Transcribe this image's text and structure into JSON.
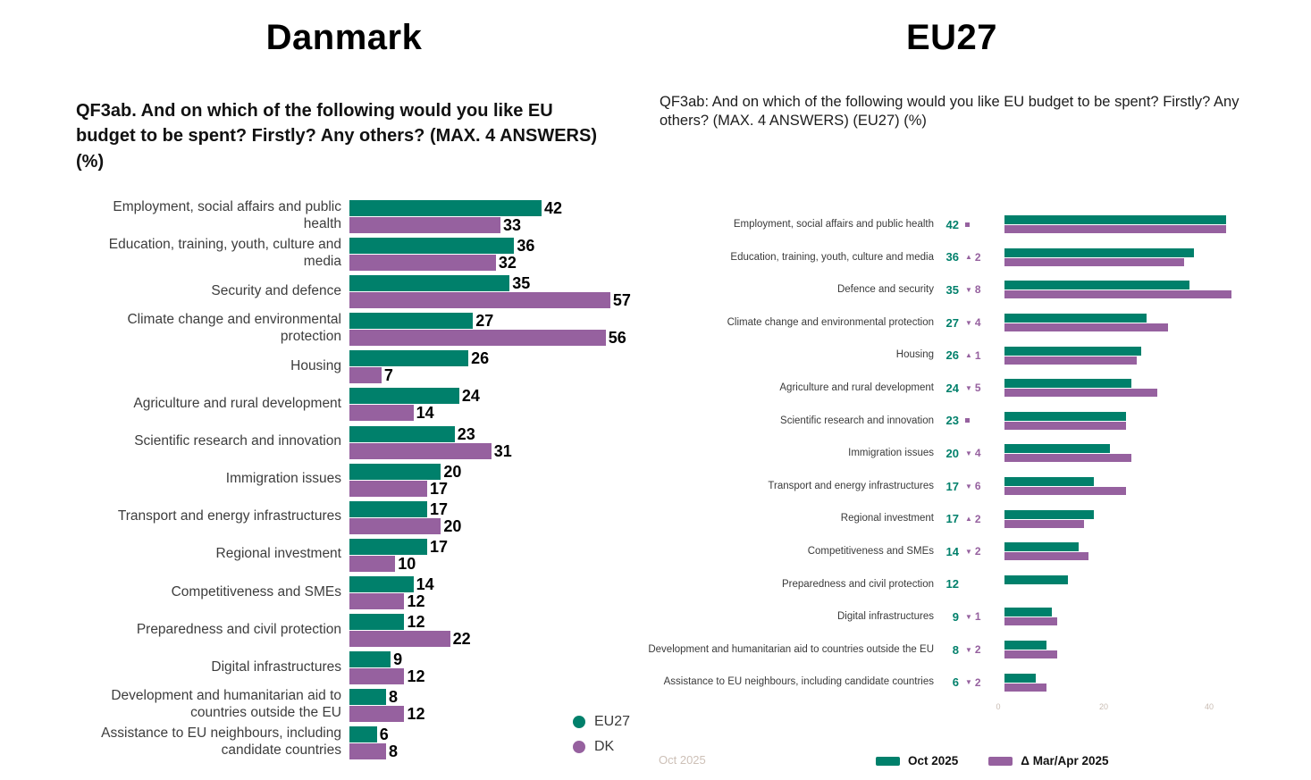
{
  "colors": {
    "teal": "#00806b",
    "purple": "#96619f",
    "axis_tick": "#c9bcb3",
    "footer": "#cdc0b7"
  },
  "left_panel": {
    "title": "Danmark",
    "question": "QF3ab. And on which of the following would you like EU budget to be spent? Firstly? Any others? (MAX. 4 ANSWERS) (%)",
    "legend": [
      {
        "label": "EU27",
        "color": "#00806b"
      },
      {
        "label": "DK",
        "color": "#96619f"
      }
    ],
    "chart_data": {
      "type": "bar",
      "orientation": "horizontal",
      "categories": [
        "Employment, social affairs and public health",
        "Education, training, youth, culture and media",
        "Security and defence",
        "Climate change and environmental protection",
        "Housing",
        "Agriculture and rural development",
        "Scientific research and innovation",
        "Immigration issues",
        "Transport and energy infrastructures",
        "Regional investment",
        "Competitiveness and SMEs",
        "Preparedness and civil protection",
        "Digital infrastructures",
        "Development and humanitarian aid to countries outside the EU",
        "Assistance to EU neighbours, including candidate countries"
      ],
      "series": [
        {
          "name": "EU27",
          "color": "#00806b",
          "values": [
            42,
            36,
            35,
            27,
            26,
            24,
            23,
            20,
            17,
            17,
            14,
            12,
            9,
            8,
            6
          ]
        },
        {
          "name": "DK",
          "color": "#96619f",
          "values": [
            33,
            32,
            57,
            56,
            7,
            14,
            31,
            17,
            20,
            10,
            12,
            22,
            12,
            12,
            8
          ]
        }
      ],
      "xlim": [
        0,
        60
      ],
      "grid": false,
      "value_labels": true,
      "legend_position": "bottom-right"
    }
  },
  "right_panel": {
    "title": "EU27",
    "question": "QF3ab: And on which of the following would you like EU budget to be spent? Firstly? Any others? (MAX. 4 ANSWERS) (EU27) (%)",
    "footer": "Oct 2025",
    "legend": [
      {
        "label": "Oct 2025",
        "color": "#00806b"
      },
      {
        "label": "Δ Mar/Apr 2025",
        "color": "#96619f"
      }
    ],
    "chart_data": {
      "type": "bar",
      "orientation": "horizontal",
      "categories": [
        "Employment, social affairs and public health",
        "Education, training, youth, culture and media",
        "Defence and security",
        "Climate change and environmental protection",
        "Housing",
        "Agriculture and rural development",
        "Scientific research and innovation",
        "Immigration issues",
        "Transport and energy infrastructures",
        "Regional investment",
        "Competitiveness and SMEs",
        "Preparedness and civil protection",
        "Digital infrastructures",
        "Development and humanitarian aid to countries outside the EU",
        "Assistance to EU neighbours, including candidate countries"
      ],
      "series": [
        {
          "name": "Oct 2025",
          "color": "#00806b",
          "values": [
            42,
            36,
            35,
            27,
            26,
            24,
            23,
            20,
            17,
            17,
            14,
            12,
            9,
            8,
            6
          ]
        },
        {
          "name": "Mar/Apr 2025",
          "color": "#96619f",
          "values": [
            42,
            34,
            43,
            31,
            25,
            29,
            23,
            24,
            23,
            15,
            16,
            null,
            10,
            10,
            8
          ]
        }
      ],
      "deltas": [
        {
          "dir": "equal",
          "value": ""
        },
        {
          "dir": "up",
          "value": "2"
        },
        {
          "dir": "down",
          "value": "8"
        },
        {
          "dir": "down",
          "value": "4"
        },
        {
          "dir": "up",
          "value": "1"
        },
        {
          "dir": "down",
          "value": "5"
        },
        {
          "dir": "equal",
          "value": ""
        },
        {
          "dir": "down",
          "value": "4"
        },
        {
          "dir": "down",
          "value": "6"
        },
        {
          "dir": "up",
          "value": "2"
        },
        {
          "dir": "down",
          "value": "2"
        },
        {
          "dir": "none",
          "value": ""
        },
        {
          "dir": "down",
          "value": "1"
        },
        {
          "dir": "down",
          "value": "2"
        },
        {
          "dir": "down",
          "value": "2"
        }
      ],
      "axis_ticks": [
        0,
        20,
        40
      ],
      "xlim": [
        0,
        45
      ],
      "grid": false,
      "legend_position": "bottom"
    }
  }
}
